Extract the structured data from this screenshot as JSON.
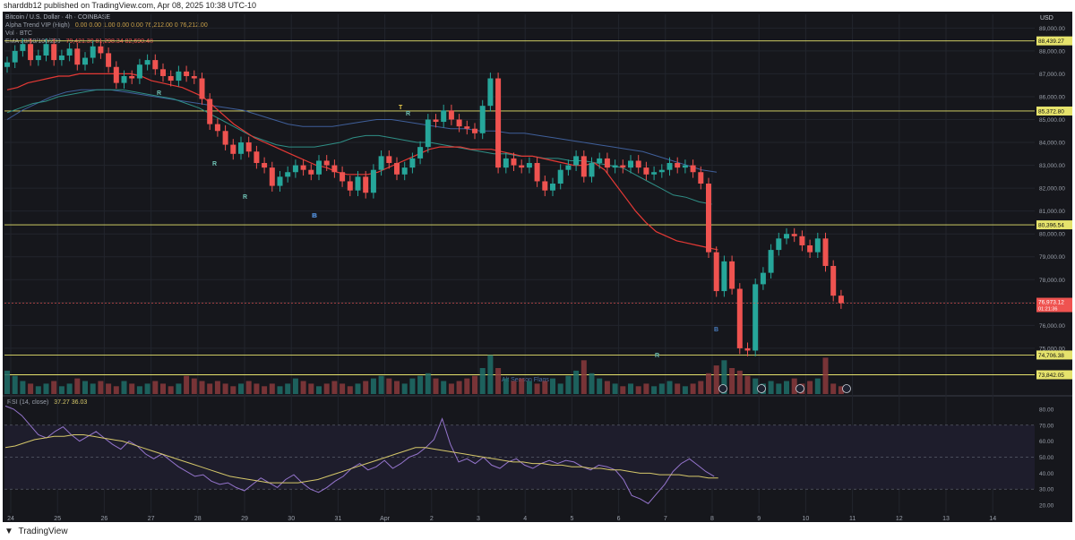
{
  "caption": "sharddb12 published on TradingView.com, Apr 08, 2025 10:38 UTC-10",
  "header": {
    "symbol_line": "Bitcoin / U.S. Dollar · 4h · COINBASE",
    "alpha_trend": "Alpha Trend VIP (High)",
    "alpha_trend_values": "0.00  0.00  1.00  0.00  0.00  76,212.00  0  76,212.00",
    "volume": "Vol · BTC",
    "ema": "EMA 20/50/100/200",
    "ema_values": "79,421.39  81,298.34  82,690.48"
  },
  "currency": "USD",
  "footer_brand": "TradingView",
  "annotation": "Alt Season Flags",
  "colors": {
    "up": "#26a69a",
    "down": "#ef5350",
    "level_line": "#e6e36c",
    "ema_fast": "#e53935",
    "ema_slow": "#26a69a",
    "rsi": "#9575cd",
    "rsi_ma": "#d6c86a"
  },
  "chart_data": [
    {
      "type": "candlestick",
      "title": "Bitcoin / U.S. Dollar · 4h · COINBASE",
      "x_ticks": [
        "24",
        "25",
        "26",
        "27",
        "28",
        "29",
        "30",
        "31",
        "Apr",
        "2",
        "3",
        "4",
        "5",
        "6",
        "7",
        "8",
        "9",
        "10",
        "11",
        "12",
        "13",
        "14"
      ],
      "y_ticks": [
        75000,
        76000,
        77000,
        78000,
        79000,
        80000,
        81000,
        82000,
        83000,
        84000,
        85000,
        86000,
        87000,
        88000,
        89000
      ],
      "ylim": [
        73000,
        89600
      ],
      "grid": true,
      "levels": [
        {
          "label": "88,439.27",
          "value": 88439.27
        },
        {
          "label": "85,372.80",
          "value": 85372.8
        },
        {
          "label": "80,396.54",
          "value": 80396.54
        },
        {
          "label": "74,706.38",
          "value": 74706.38
        },
        {
          "label": "73,842.05",
          "value": 73842.05
        }
      ],
      "last_price": {
        "label": "76,973.12",
        "sub": "01:21:36",
        "value": 76973.12
      },
      "signals": [
        "R",
        "R",
        "R",
        "B",
        "T",
        "R",
        "R",
        "B",
        "B"
      ],
      "series": [
        {
          "name": "close",
          "values": [
            87500,
            88000,
            88300,
            87600,
            87800,
            88300,
            87600,
            87800,
            88100,
            87400,
            87700,
            88200,
            87900,
            87300,
            86600,
            86900,
            86800,
            87400,
            87600,
            87200,
            86900,
            86700,
            87100,
            86900,
            86800,
            85900,
            84800,
            84500,
            83900,
            83500,
            84000,
            83600,
            83100,
            82900,
            82100,
            82500,
            82700,
            83000,
            82800,
            82600,
            83200,
            83000,
            82700,
            82300,
            81900,
            82500,
            81800,
            82800,
            83400,
            83100,
            82600,
            82900,
            83300,
            83800,
            85000,
            84900,
            85400,
            85000,
            84700,
            84600,
            84400,
            85600,
            86800,
            82900,
            83300,
            83000,
            82900,
            83100,
            82300,
            81900,
            82200,
            82800,
            83000,
            83400,
            82500,
            83100,
            83300,
            82900,
            83000,
            82900,
            83200,
            82900,
            82600,
            82700,
            82800,
            83100,
            82900,
            83000,
            82700,
            82200,
            79200,
            77500,
            78800,
            77600,
            75000,
            74900,
            77800,
            78300,
            79300,
            79800,
            80000,
            79900,
            79500,
            79200,
            79800,
            78600,
            77300,
            76973
          ]
        },
        {
          "name": "volume_relative",
          "values": [
            0.45,
            0.35,
            0.25,
            0.2,
            0.15,
            0.2,
            0.25,
            0.15,
            0.2,
            0.3,
            0.25,
            0.2,
            0.25,
            0.2,
            0.15,
            0.25,
            0.2,
            0.15,
            0.2,
            0.25,
            0.2,
            0.15,
            0.2,
            0.35,
            0.3,
            0.25,
            0.2,
            0.25,
            0.2,
            0.15,
            0.2,
            0.25,
            0.2,
            0.15,
            0.2,
            0.15,
            0.2,
            0.3,
            0.25,
            0.2,
            0.15,
            0.2,
            0.25,
            0.2,
            0.15,
            0.2,
            0.25,
            0.3,
            0.35,
            0.3,
            0.25,
            0.2,
            0.3,
            0.35,
            0.4,
            0.3,
            0.25,
            0.2,
            0.25,
            0.3,
            0.35,
            0.5,
            0.75,
            0.5,
            0.3,
            0.25,
            0.3,
            0.25,
            0.2,
            0.25,
            0.3,
            0.2,
            0.35,
            0.45,
            0.65,
            0.4,
            0.3,
            0.25,
            0.2,
            0.15,
            0.2,
            0.15,
            0.2,
            0.15,
            0.2,
            0.25,
            0.2,
            0.15,
            0.2,
            0.25,
            0.4,
            0.55,
            0.65,
            0.5,
            0.45,
            0.35,
            0.3,
            0.2,
            0.25,
            0.2,
            0.25,
            0.3,
            0.2,
            0.25,
            0.3,
            0.7,
            0.2,
            0.15
          ]
        },
        {
          "name": "EMA 20",
          "values": [
            86300,
            86400,
            86600,
            86700,
            86800,
            86900,
            86900,
            87000,
            87000,
            87000,
            87000,
            87000,
            87000,
            86900,
            86700,
            86600,
            86500,
            86400,
            86200,
            86000,
            85600,
            85200,
            84800,
            84500,
            84200,
            84000,
            83800,
            83600,
            83400,
            83200,
            83000,
            82900,
            82700,
            82600,
            82600,
            82600,
            82700,
            82900,
            83100,
            83300,
            83500,
            83700,
            83800,
            83800,
            83800,
            83700,
            83700,
            83700,
            83600,
            83500,
            83400,
            83400,
            83300,
            83200,
            83100,
            83000,
            83000,
            83100,
            82800,
            82200,
            81600,
            81000,
            80500,
            80100,
            79900,
            79700,
            79600,
            79500,
            79400,
            79300
          ]
        },
        {
          "name": "EMA 50",
          "values": [
            85300,
            85500,
            85700,
            85800,
            86000,
            86100,
            86200,
            86300,
            86300,
            86300,
            86200,
            86100,
            86000,
            85900,
            85700,
            85500,
            85200,
            84900,
            84600,
            84300,
            84100,
            83900,
            83800,
            83800,
            83800,
            83900,
            84000,
            84200,
            84300,
            84300,
            84200,
            84100,
            84000,
            84000,
            83900,
            83800,
            83700,
            83600,
            83500,
            83500,
            83400,
            83400,
            83300,
            83300,
            83200,
            83200,
            83100,
            83000,
            82900,
            82600,
            82300,
            82000,
            81700,
            81600,
            81400,
            81300
          ]
        },
        {
          "name": "EMA 100",
          "values": [
            85000,
            85400,
            85700,
            86000,
            86200,
            86300,
            86300,
            86300,
            86200,
            86100,
            86000,
            85900,
            85800,
            85700,
            85600,
            85500,
            85400,
            85200,
            85000,
            84800,
            84700,
            84700,
            84700,
            84800,
            84900,
            85000,
            85000,
            84900,
            84800,
            84700,
            84600,
            84600,
            84500,
            84500,
            84400,
            84400,
            84300,
            84200,
            84100,
            84000,
            83900,
            83800,
            83700,
            83600,
            83400,
            83200,
            83000,
            82800,
            82700
          ]
        }
      ]
    },
    {
      "type": "line",
      "title": "RSI (14, close)",
      "values_label": "37.27  36.03",
      "y_ticks": [
        20,
        30,
        40,
        50,
        60,
        70,
        80
      ],
      "ylim": [
        15,
        85
      ],
      "bands": [
        30,
        50,
        70
      ],
      "series": [
        {
          "name": "RSI",
          "values": [
            82,
            80,
            76,
            70,
            64,
            62,
            66,
            69,
            64,
            60,
            63,
            66,
            62,
            58,
            55,
            60,
            57,
            52,
            49,
            52,
            48,
            44,
            41,
            38,
            39,
            35,
            33,
            34,
            31,
            29,
            33,
            37,
            34,
            31,
            36,
            39,
            34,
            30,
            28,
            31,
            35,
            38,
            43,
            46,
            42,
            44,
            48,
            43,
            46,
            50,
            52,
            56,
            61,
            74,
            58,
            47,
            49,
            46,
            50,
            45,
            43,
            47,
            49,
            45,
            43,
            46,
            48,
            46,
            48,
            47,
            44,
            42,
            45,
            44,
            42,
            36,
            26,
            24,
            21,
            27,
            33,
            41,
            46,
            49,
            45,
            41,
            38
          ]
        },
        {
          "name": "RSI MA",
          "values": [
            56,
            57,
            59,
            61,
            62,
            63,
            63,
            64,
            64,
            63,
            62,
            61,
            60,
            58,
            56,
            54,
            52,
            50,
            48,
            46,
            44,
            42,
            40,
            38,
            37,
            36,
            35,
            34,
            34,
            34,
            34,
            35,
            36,
            38,
            40,
            42,
            44,
            46,
            48,
            50,
            52,
            54,
            56,
            56,
            55,
            54,
            53,
            52,
            51,
            50,
            49,
            48,
            47,
            47,
            46,
            46,
            45,
            45,
            44,
            44,
            43,
            43,
            42,
            42,
            41,
            40,
            40,
            39,
            39,
            39,
            38,
            38,
            37,
            37
          ]
        }
      ]
    }
  ]
}
